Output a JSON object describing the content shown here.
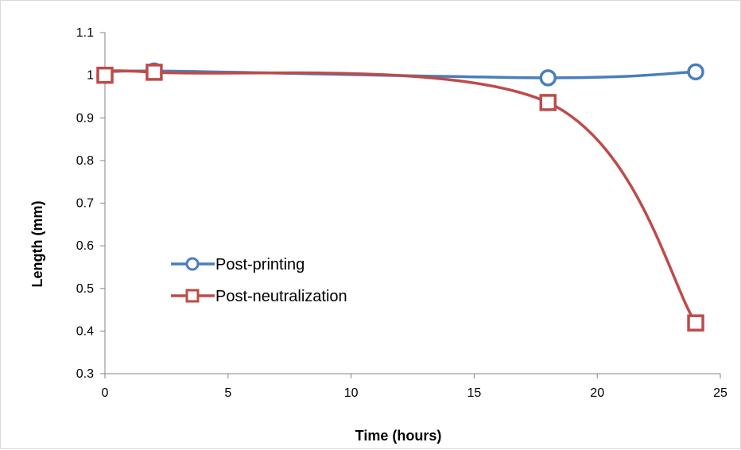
{
  "chart_data": {
    "type": "line",
    "title": "",
    "xlabel": "Time (hours)",
    "ylabel": "Length (mm)",
    "xlim": [
      0,
      25
    ],
    "ylim": [
      0.3,
      1.1
    ],
    "x_ticks": [
      0,
      5,
      10,
      15,
      20,
      25
    ],
    "y_ticks": [
      0.3,
      0.4,
      0.5,
      0.6,
      0.7,
      0.8,
      0.9,
      1,
      1.1
    ],
    "grid": false,
    "smooth": true,
    "legend_position": "left-center",
    "series": [
      {
        "name": "Post-printing",
        "color": "#4a7ebb",
        "marker": "circle",
        "x": [
          0,
          2,
          18,
          24
        ],
        "y": [
          1.0,
          1.01,
          0.994,
          1.008
        ]
      },
      {
        "name": "Post-neutralization",
        "color": "#be4b48",
        "marker": "square",
        "x": [
          0,
          2,
          18,
          24
        ],
        "y": [
          1.0,
          1.007,
          0.936,
          0.419
        ]
      }
    ]
  }
}
